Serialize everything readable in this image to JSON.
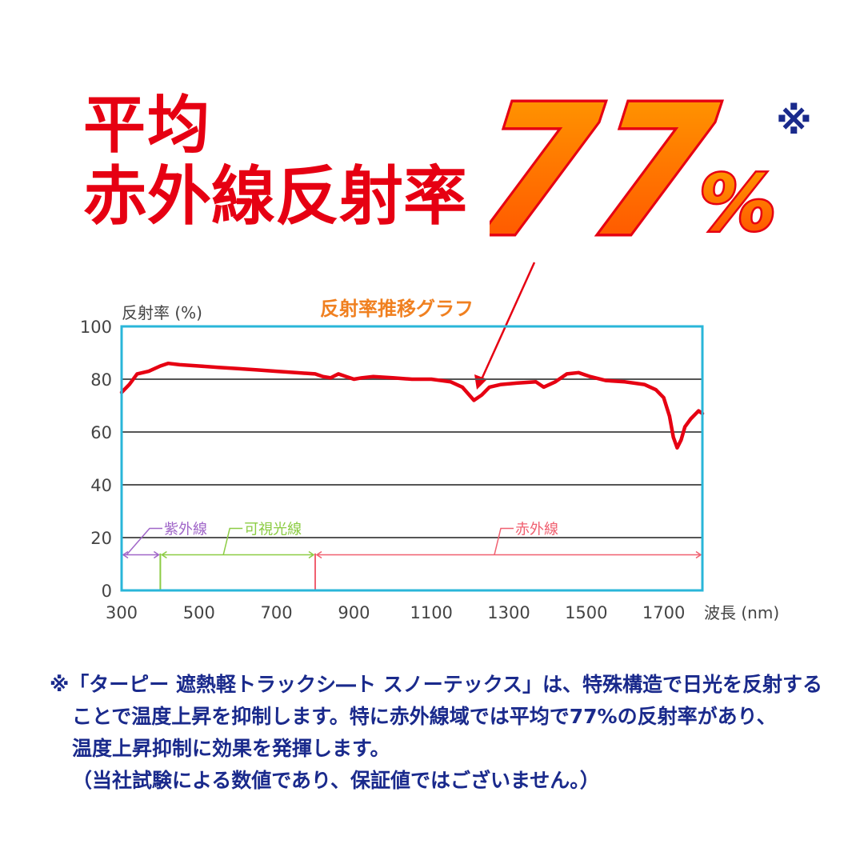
{
  "headline": {
    "line1": "平均",
    "line2": "赤外線反射率",
    "value": "77",
    "unit": "%",
    "mark": "※"
  },
  "colors": {
    "headline_red": "#e60012",
    "big_number_fill": "#ff6a00",
    "big_number_outline": "#e60012",
    "chart_frame": "#29b6d9",
    "series_line": "#e60012",
    "uv_range": "#a066c8",
    "visible_range": "#8ccc44",
    "ir_range": "#f06070",
    "chart_title": "#f08020",
    "footnote_text": "#1a2a8c",
    "axis_text": "#444444"
  },
  "chart_data": {
    "type": "line",
    "title": "反射率推移グラフ",
    "ylabel": "反射率 (%)",
    "xlabel": "波長 (nm)",
    "xlim": [
      300,
      1800
    ],
    "ylim": [
      0,
      100
    ],
    "x_ticks": [
      300,
      500,
      700,
      900,
      1100,
      1300,
      1500,
      1700
    ],
    "y_ticks": [
      0,
      20,
      40,
      60,
      80,
      100
    ],
    "grid": "horizontal",
    "series": [
      {
        "points": [
          [
            300,
            75
          ],
          [
            320,
            78
          ],
          [
            340,
            82
          ],
          [
            370,
            83
          ],
          [
            400,
            85
          ],
          [
            420,
            86
          ],
          [
            450,
            85.5
          ],
          [
            500,
            85
          ],
          [
            550,
            84.5
          ],
          [
            600,
            84
          ],
          [
            650,
            83.5
          ],
          [
            700,
            83
          ],
          [
            750,
            82.5
          ],
          [
            800,
            82
          ],
          [
            820,
            81
          ],
          [
            840,
            80.5
          ],
          [
            860,
            82
          ],
          [
            880,
            81
          ],
          [
            900,
            80
          ],
          [
            920,
            80.5
          ],
          [
            950,
            81
          ],
          [
            1000,
            80.5
          ],
          [
            1050,
            80
          ],
          [
            1100,
            80
          ],
          [
            1150,
            79
          ],
          [
            1180,
            77
          ],
          [
            1210,
            72
          ],
          [
            1230,
            74
          ],
          [
            1250,
            77
          ],
          [
            1280,
            78
          ],
          [
            1320,
            78.5
          ],
          [
            1370,
            79
          ],
          [
            1390,
            77
          ],
          [
            1420,
            79
          ],
          [
            1450,
            82
          ],
          [
            1480,
            82.5
          ],
          [
            1510,
            81
          ],
          [
            1550,
            79.5
          ],
          [
            1600,
            79
          ],
          [
            1650,
            78
          ],
          [
            1680,
            76
          ],
          [
            1700,
            73
          ],
          [
            1715,
            66
          ],
          [
            1725,
            58
          ],
          [
            1735,
            54
          ],
          [
            1745,
            57
          ],
          [
            1755,
            62
          ],
          [
            1770,
            65
          ],
          [
            1790,
            68
          ],
          [
            1800,
            67
          ]
        ]
      }
    ],
    "ranges": [
      {
        "label": "紫外線",
        "from": 300,
        "to": 400
      },
      {
        "label": "可視光線",
        "from": 400,
        "to": 800
      },
      {
        "label": "赤外線",
        "from": 800,
        "to": 1800
      }
    ]
  },
  "footnote": {
    "line1": "※「ターピー 遮熱軽トラックシ―ト スノーテックス」は、特殊構造で日光を反射する",
    "line2": "ことで温度上昇を抑制します。特に赤外線域では平均で77%の反射率があり、",
    "line3": "温度上昇抑制に効果を発揮します。",
    "line4": "（当社試験による数値であり、保証値ではございません。）"
  }
}
